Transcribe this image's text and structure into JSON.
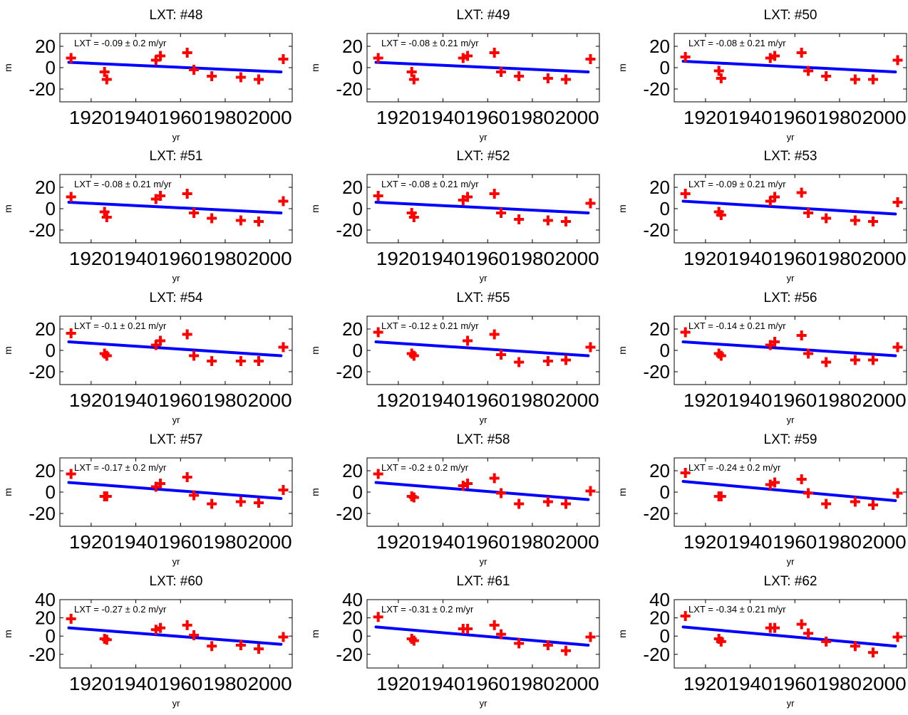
{
  "style": {
    "marker_color": "#ff0000",
    "trend_color": "#0000ff",
    "axes_color": "#000000"
  },
  "chart_data": [
    {
      "type": "scatter",
      "title": "LXT: #48",
      "xlabel": "yr",
      "ylabel": "m",
      "annotation": "LXT = -0.09 ± 0.2 m/yr",
      "xlim": [
        1906,
        2010
      ],
      "ylim": [
        -32,
        32
      ],
      "xticks": [
        "1920",
        "1940",
        "1960",
        "1980",
        "2000"
      ],
      "yticks": [
        "20",
        "0",
        "-20"
      ],
      "ytick_values": [
        20,
        0,
        -20
      ],
      "grid": false,
      "points": [
        [
          1911,
          9
        ],
        [
          1926,
          -4
        ],
        [
          1927,
          -11
        ],
        [
          1949,
          7
        ],
        [
          1951,
          11
        ],
        [
          1963,
          14
        ],
        [
          1966,
          -2
        ],
        [
          1974,
          -8
        ],
        [
          1987,
          -9
        ],
        [
          1995,
          -11
        ],
        [
          2006,
          8
        ]
      ],
      "trend": [
        [
          1910,
          5
        ],
        [
          2005,
          -4
        ]
      ]
    },
    {
      "type": "scatter",
      "title": "LXT: #49",
      "xlabel": "yr",
      "ylabel": "m",
      "annotation": "LXT = -0.08 ± 0.21 m/yr",
      "xlim": [
        1906,
        2010
      ],
      "ylim": [
        -32,
        32
      ],
      "xticks": [
        "1920",
        "1940",
        "1960",
        "1980",
        "2000"
      ],
      "yticks": [
        "20",
        "0",
        "-20"
      ],
      "ytick_values": [
        20,
        0,
        -20
      ],
      "grid": false,
      "points": [
        [
          1911,
          9
        ],
        [
          1926,
          -4
        ],
        [
          1927,
          -11
        ],
        [
          1949,
          9
        ],
        [
          1951,
          11
        ],
        [
          1963,
          14
        ],
        [
          1966,
          -4
        ],
        [
          1974,
          -8
        ],
        [
          1987,
          -10
        ],
        [
          1995,
          -11
        ],
        [
          2006,
          8
        ]
      ],
      "trend": [
        [
          1910,
          5
        ],
        [
          2005,
          -4
        ]
      ]
    },
    {
      "type": "scatter",
      "title": "LXT: #50",
      "xlabel": "yr",
      "ylabel": "m",
      "annotation": "LXT = -0.08 ± 0.21 m/yr",
      "xlim": [
        1906,
        2010
      ],
      "ylim": [
        -32,
        32
      ],
      "xticks": [
        "1920",
        "1940",
        "1960",
        "1980",
        "2000"
      ],
      "yticks": [
        "20",
        "0",
        "-20"
      ],
      "ytick_values": [
        20,
        0,
        -20
      ],
      "grid": false,
      "points": [
        [
          1911,
          10
        ],
        [
          1926,
          -3
        ],
        [
          1927,
          -10
        ],
        [
          1949,
          9
        ],
        [
          1951,
          11
        ],
        [
          1963,
          14
        ],
        [
          1966,
          -3
        ],
        [
          1974,
          -8
        ],
        [
          1987,
          -11
        ],
        [
          1995,
          -11
        ],
        [
          2006,
          7
        ]
      ],
      "trend": [
        [
          1910,
          6
        ],
        [
          2005,
          -4
        ]
      ]
    },
    {
      "type": "scatter",
      "title": "LXT: #51",
      "xlabel": "yr",
      "ylabel": "m",
      "annotation": "LXT = -0.08 ± 0.21 m/yr",
      "xlim": [
        1906,
        2010
      ],
      "ylim": [
        -32,
        32
      ],
      "xticks": [
        "1920",
        "1940",
        "1960",
        "1980",
        "2000"
      ],
      "yticks": [
        "20",
        "0",
        "-20"
      ],
      "ytick_values": [
        20,
        0,
        -20
      ],
      "grid": false,
      "points": [
        [
          1911,
          11
        ],
        [
          1926,
          -3
        ],
        [
          1927,
          -8
        ],
        [
          1949,
          9
        ],
        [
          1951,
          12
        ],
        [
          1963,
          14
        ],
        [
          1966,
          -4
        ],
        [
          1974,
          -9
        ],
        [
          1987,
          -11
        ],
        [
          1995,
          -12
        ],
        [
          2006,
          7
        ]
      ],
      "trend": [
        [
          1910,
          6
        ],
        [
          2005,
          -4
        ]
      ]
    },
    {
      "type": "scatter",
      "title": "LXT: #52",
      "xlabel": "yr",
      "ylabel": "m",
      "annotation": "LXT = -0.08 ± 0.21 m/yr",
      "xlim": [
        1906,
        2010
      ],
      "ylim": [
        -32,
        32
      ],
      "xticks": [
        "1920",
        "1940",
        "1960",
        "1980",
        "2000"
      ],
      "yticks": [
        "20",
        "0",
        "-20"
      ],
      "ytick_values": [
        20,
        0,
        -20
      ],
      "grid": false,
      "points": [
        [
          1911,
          12
        ],
        [
          1926,
          -4
        ],
        [
          1927,
          -8
        ],
        [
          1949,
          8
        ],
        [
          1951,
          11
        ],
        [
          1963,
          14
        ],
        [
          1966,
          -4
        ],
        [
          1974,
          -10
        ],
        [
          1987,
          -11
        ],
        [
          1995,
          -12
        ],
        [
          2006,
          5
        ]
      ],
      "trend": [
        [
          1910,
          6
        ],
        [
          2005,
          -4
        ]
      ]
    },
    {
      "type": "scatter",
      "title": "LXT: #53",
      "xlabel": "yr",
      "ylabel": "m",
      "annotation": "LXT = -0.09 ± 0.21 m/yr",
      "xlim": [
        1906,
        2010
      ],
      "ylim": [
        -32,
        32
      ],
      "xticks": [
        "1920",
        "1940",
        "1960",
        "1980",
        "2000"
      ],
      "yticks": [
        "20",
        "0",
        "-20"
      ],
      "ytick_values": [
        20,
        0,
        -20
      ],
      "grid": false,
      "points": [
        [
          1911,
          14
        ],
        [
          1926,
          -3
        ],
        [
          1927,
          -6
        ],
        [
          1949,
          7
        ],
        [
          1951,
          11
        ],
        [
          1963,
          15
        ],
        [
          1966,
          -4
        ],
        [
          1974,
          -9
        ],
        [
          1987,
          -11
        ],
        [
          1995,
          -12
        ],
        [
          2006,
          6
        ]
      ],
      "trend": [
        [
          1910,
          7
        ],
        [
          2005,
          -5
        ]
      ]
    },
    {
      "type": "scatter",
      "title": "LXT: #54",
      "xlabel": "yr",
      "ylabel": "m",
      "annotation": "LXT = -0.1 ± 0.21 m/yr",
      "xlim": [
        1906,
        2010
      ],
      "ylim": [
        -32,
        32
      ],
      "xticks": [
        "1920",
        "1940",
        "1960",
        "1980",
        "2000"
      ],
      "yticks": [
        "20",
        "0",
        "-20"
      ],
      "ytick_values": [
        20,
        0,
        -20
      ],
      "grid": false,
      "points": [
        [
          1911,
          16
        ],
        [
          1926,
          -3
        ],
        [
          1927,
          -5
        ],
        [
          1949,
          5
        ],
        [
          1951,
          9
        ],
        [
          1963,
          15
        ],
        [
          1966,
          -5
        ],
        [
          1974,
          -10
        ],
        [
          1987,
          -10
        ],
        [
          1995,
          -10
        ],
        [
          2006,
          3
        ]
      ],
      "trend": [
        [
          1910,
          8
        ],
        [
          2005,
          -5
        ]
      ]
    },
    {
      "type": "scatter",
      "title": "LXT: #55",
      "xlabel": "yr",
      "ylabel": "m",
      "annotation": "LXT = -0.12 ± 0.21 m/yr",
      "xlim": [
        1906,
        2010
      ],
      "ylim": [
        -32,
        32
      ],
      "xticks": [
        "1920",
        "1940",
        "1960",
        "1980",
        "2000"
      ],
      "yticks": [
        "20",
        "0",
        "-20"
      ],
      "ytick_values": [
        20,
        0,
        -20
      ],
      "grid": false,
      "points": [
        [
          1911,
          17
        ],
        [
          1926,
          -3
        ],
        [
          1927,
          -5
        ],
        [
          1951,
          9
        ],
        [
          1963,
          15
        ],
        [
          1966,
          -4
        ],
        [
          1974,
          -11
        ],
        [
          1987,
          -10
        ],
        [
          1995,
          -9
        ],
        [
          2006,
          3
        ]
      ],
      "trend": [
        [
          1910,
          8
        ],
        [
          2005,
          -5
        ]
      ]
    },
    {
      "type": "scatter",
      "title": "LXT: #56",
      "xlabel": "yr",
      "ylabel": "m",
      "annotation": "LXT = -0.14 ± 0.21 m/yr",
      "xlim": [
        1906,
        2010
      ],
      "ylim": [
        -32,
        32
      ],
      "xticks": [
        "1920",
        "1940",
        "1960",
        "1980",
        "2000"
      ],
      "yticks": [
        "20",
        "0",
        "-20"
      ],
      "ytick_values": [
        20,
        0,
        -20
      ],
      "grid": false,
      "points": [
        [
          1911,
          17
        ],
        [
          1926,
          -3
        ],
        [
          1927,
          -5
        ],
        [
          1949,
          5
        ],
        [
          1951,
          8
        ],
        [
          1963,
          14
        ],
        [
          1966,
          -3
        ],
        [
          1974,
          -11
        ],
        [
          1987,
          -9
        ],
        [
          1995,
          -9
        ],
        [
          2006,
          3
        ]
      ],
      "trend": [
        [
          1910,
          8
        ],
        [
          2005,
          -5
        ]
      ]
    },
    {
      "type": "scatter",
      "title": "LXT: #57",
      "xlabel": "yr",
      "ylabel": "m",
      "annotation": "LXT = -0.17 ± 0.2 m/yr",
      "xlim": [
        1906,
        2010
      ],
      "ylim": [
        -32,
        32
      ],
      "xticks": [
        "1920",
        "1940",
        "1960",
        "1980",
        "2000"
      ],
      "yticks": [
        "20",
        "0",
        "-20"
      ],
      "ytick_values": [
        20,
        0,
        -20
      ],
      "grid": false,
      "points": [
        [
          1911,
          17
        ],
        [
          1926,
          -4
        ],
        [
          1927,
          -4
        ],
        [
          1949,
          5
        ],
        [
          1951,
          8
        ],
        [
          1963,
          14
        ],
        [
          1966,
          -3
        ],
        [
          1974,
          -11
        ],
        [
          1987,
          -9
        ],
        [
          1995,
          -10
        ],
        [
          2006,
          2
        ]
      ],
      "trend": [
        [
          1910,
          9
        ],
        [
          2005,
          -6
        ]
      ]
    },
    {
      "type": "scatter",
      "title": "LXT: #58",
      "xlabel": "yr",
      "ylabel": "m",
      "annotation": "LXT = -0.2 ± 0.2 m/yr",
      "xlim": [
        1906,
        2010
      ],
      "ylim": [
        -32,
        32
      ],
      "xticks": [
        "1920",
        "1940",
        "1960",
        "1980",
        "2000"
      ],
      "yticks": [
        "20",
        "0",
        "-20"
      ],
      "ytick_values": [
        20,
        0,
        -20
      ],
      "grid": false,
      "points": [
        [
          1911,
          17
        ],
        [
          1926,
          -4
        ],
        [
          1927,
          -5
        ],
        [
          1949,
          6
        ],
        [
          1951,
          8
        ],
        [
          1963,
          13
        ],
        [
          1966,
          -1
        ],
        [
          1974,
          -11
        ],
        [
          1987,
          -9
        ],
        [
          1995,
          -11
        ],
        [
          2006,
          1
        ]
      ],
      "trend": [
        [
          1910,
          9
        ],
        [
          2005,
          -7
        ]
      ]
    },
    {
      "type": "scatter",
      "title": "LXT: #59",
      "xlabel": "yr",
      "ylabel": "m",
      "annotation": "LXT = -0.24 ± 0.2 m/yr",
      "xlim": [
        1906,
        2010
      ],
      "ylim": [
        -32,
        32
      ],
      "xticks": [
        "1920",
        "1940",
        "1960",
        "1980",
        "2000"
      ],
      "yticks": [
        "20",
        "0",
        "-20"
      ],
      "ytick_values": [
        20,
        0,
        -20
      ],
      "grid": false,
      "points": [
        [
          1911,
          18
        ],
        [
          1926,
          -4
        ],
        [
          1927,
          -4
        ],
        [
          1949,
          7
        ],
        [
          1951,
          9
        ],
        [
          1963,
          12
        ],
        [
          1966,
          -1
        ],
        [
          1974,
          -11
        ],
        [
          1987,
          -9
        ],
        [
          1995,
          -12
        ],
        [
          2006,
          -1
        ]
      ],
      "trend": [
        [
          1910,
          10
        ],
        [
          2005,
          -8
        ]
      ]
    },
    {
      "type": "scatter",
      "title": "LXT: #60",
      "xlabel": "yr",
      "ylabel": "m",
      "annotation": "LXT = -0.27 ± 0.2 m/yr",
      "xlim": [
        1906,
        2010
      ],
      "ylim": [
        -35,
        40
      ],
      "xticks": [
        "1920",
        "1940",
        "1960",
        "1980",
        "2000"
      ],
      "yticks": [
        "40",
        "20",
        "0",
        "-20"
      ],
      "ytick_values": [
        40,
        20,
        0,
        -20
      ],
      "grid": false,
      "points": [
        [
          1911,
          19
        ],
        [
          1926,
          -3
        ],
        [
          1927,
          -4
        ],
        [
          1949,
          7
        ],
        [
          1951,
          9
        ],
        [
          1963,
          12
        ],
        [
          1966,
          1
        ],
        [
          1974,
          -11
        ],
        [
          1987,
          -10
        ],
        [
          1995,
          -14
        ],
        [
          2006,
          -1
        ]
      ],
      "trend": [
        [
          1910,
          9
        ],
        [
          2005,
          -9
        ]
      ]
    },
    {
      "type": "scatter",
      "title": "LXT: #61",
      "xlabel": "yr",
      "ylabel": "m",
      "annotation": "LXT = -0.31 ± 0.2 m/yr",
      "xlim": [
        1906,
        2010
      ],
      "ylim": [
        -35,
        40
      ],
      "xticks": [
        "1920",
        "1940",
        "1960",
        "1980",
        "2000"
      ],
      "yticks": [
        "40",
        "20",
        "0",
        "-20"
      ],
      "ytick_values": [
        40,
        20,
        0,
        -20
      ],
      "grid": false,
      "points": [
        [
          1911,
          21
        ],
        [
          1926,
          -3
        ],
        [
          1927,
          -5
        ],
        [
          1949,
          8
        ],
        [
          1951,
          8
        ],
        [
          1963,
          12
        ],
        [
          1966,
          2
        ],
        [
          1974,
          -8
        ],
        [
          1987,
          -10
        ],
        [
          1995,
          -16
        ],
        [
          2006,
          -1
        ]
      ],
      "trend": [
        [
          1910,
          10
        ],
        [
          2005,
          -10
        ]
      ]
    },
    {
      "type": "scatter",
      "title": "LXT: #62",
      "xlabel": "yr",
      "ylabel": "m",
      "annotation": "LXT = -0.34 ± 0.21 m/yr",
      "xlim": [
        1906,
        2010
      ],
      "ylim": [
        -35,
        40
      ],
      "xticks": [
        "1920",
        "1940",
        "1960",
        "1980",
        "2000"
      ],
      "yticks": [
        "40",
        "20",
        "0",
        "-20"
      ],
      "ytick_values": [
        40,
        20,
        0,
        -20
      ],
      "grid": false,
      "points": [
        [
          1911,
          22
        ],
        [
          1926,
          -3
        ],
        [
          1927,
          -6
        ],
        [
          1949,
          9
        ],
        [
          1951,
          9
        ],
        [
          1963,
          13
        ],
        [
          1966,
          3
        ],
        [
          1974,
          -6
        ],
        [
          1987,
          -11
        ],
        [
          1995,
          -18
        ],
        [
          2006,
          -1
        ]
      ],
      "trend": [
        [
          1910,
          10
        ],
        [
          2005,
          -11
        ]
      ]
    }
  ]
}
